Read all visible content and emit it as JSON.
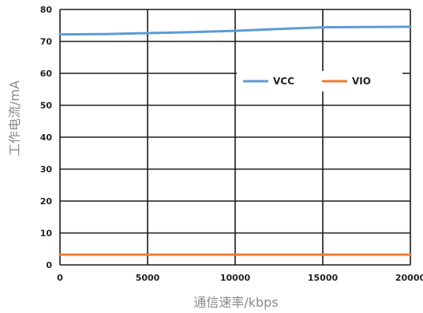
{
  "chart_data": {
    "type": "line",
    "title": "",
    "xlabel": "通信速率/kbps",
    "ylabel": "工作电流/mA",
    "xlim": [
      0,
      20000
    ],
    "ylim": [
      0,
      80
    ],
    "x_ticks": [
      "0",
      "5000",
      "10000",
      "15000",
      "20000"
    ],
    "y_ticks": [
      "0",
      "10",
      "20",
      "30",
      "40",
      "50",
      "60",
      "70",
      "80"
    ],
    "grid": true,
    "legend_position": "top-right",
    "series": [
      {
        "name": "VCC",
        "color": "#5b9bd5",
        "x": [
          0,
          2500,
          5000,
          7500,
          10000,
          12500,
          15000,
          17500,
          20000
        ],
        "y": [
          72.2,
          72.3,
          72.6,
          72.9,
          73.3,
          73.9,
          74.4,
          74.5,
          74.6
        ]
      },
      {
        "name": "VIO",
        "color": "#ed7d31",
        "x": [
          0,
          5000,
          10000,
          15000,
          20000
        ],
        "y": [
          3.2,
          3.2,
          3.2,
          3.2,
          3.2
        ]
      }
    ]
  }
}
